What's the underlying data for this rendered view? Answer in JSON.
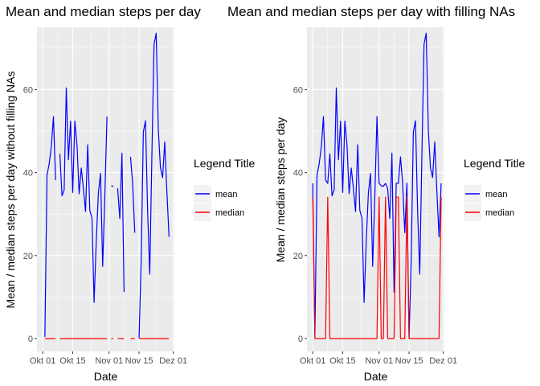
{
  "chart_data": [
    {
      "type": "line",
      "title": "Mean and median steps per day",
      "xlabel": "Date",
      "ylabel": "Mean / median steps per day without filling NAs",
      "x": [
        "2012-10-01",
        "2012-10-02",
        "2012-10-03",
        "2012-10-04",
        "2012-10-05",
        "2012-10-06",
        "2012-10-07",
        "2012-10-08",
        "2012-10-09",
        "2012-10-10",
        "2012-10-11",
        "2012-10-12",
        "2012-10-13",
        "2012-10-14",
        "2012-10-15",
        "2012-10-16",
        "2012-10-17",
        "2012-10-18",
        "2012-10-19",
        "2012-10-20",
        "2012-10-21",
        "2012-10-22",
        "2012-10-23",
        "2012-10-24",
        "2012-10-25",
        "2012-10-26",
        "2012-10-27",
        "2012-10-28",
        "2012-10-29",
        "2012-10-30",
        "2012-10-31",
        "2012-11-01",
        "2012-11-02",
        "2012-11-03",
        "2012-11-04",
        "2012-11-05",
        "2012-11-06",
        "2012-11-07",
        "2012-11-08",
        "2012-11-09",
        "2012-11-10",
        "2012-11-11",
        "2012-11-12",
        "2012-11-13",
        "2012-11-14",
        "2012-11-15",
        "2012-11-16",
        "2012-11-17",
        "2012-11-18",
        "2012-11-19",
        "2012-11-20",
        "2012-11-21",
        "2012-11-22",
        "2012-11-23",
        "2012-11-24",
        "2012-11-25",
        "2012-11-26",
        "2012-11-27",
        "2012-11-28",
        "2012-11-29",
        "2012-11-30"
      ],
      "series": [
        {
          "name": "mean",
          "color": "#0000ff",
          "values": [
            null,
            0.4,
            39.4,
            42.1,
            46.2,
            53.5,
            38.2,
            null,
            44.5,
            34.4,
            35.8,
            60.4,
            43.1,
            52.4,
            35.2,
            52.4,
            46.7,
            34.9,
            41.1,
            36.1,
            30.6,
            46.7,
            30.9,
            29.0,
            8.7,
            23.5,
            35.1,
            39.8,
            17.4,
            34.1,
            53.5,
            null,
            36.8,
            36.7,
            null,
            36.2,
            28.9,
            44.7,
            11.2,
            null,
            null,
            43.8,
            37.4,
            25.5,
            null,
            0.1,
            18.9,
            49.8,
            52.5,
            30.7,
            15.5,
            44.4,
            70.9,
            73.6,
            50.3,
            41.1,
            38.8,
            47.4,
            35.4,
            24.5,
            null
          ]
        },
        {
          "name": "median",
          "color": "#ff0000",
          "values": [
            null,
            0,
            0,
            0,
            0,
            0,
            0,
            null,
            0,
            0,
            0,
            0,
            0,
            0,
            0,
            0,
            0,
            0,
            0,
            0,
            0,
            0,
            0,
            0,
            0,
            0,
            0,
            0,
            0,
            0,
            0,
            null,
            0,
            0,
            null,
            0,
            0,
            0,
            0,
            null,
            null,
            0,
            0,
            0,
            null,
            0,
            0,
            0,
            0,
            0,
            0,
            0,
            0,
            0,
            0,
            0,
            0,
            0,
            0,
            0,
            null
          ]
        }
      ],
      "ylim": [
        0,
        75
      ],
      "yticks": [
        0,
        20,
        40,
        60
      ],
      "xticks": [
        {
          "value": "2012-10-01",
          "label": "Okt 01"
        },
        {
          "value": "2012-10-15",
          "label": "Okt 15"
        },
        {
          "value": "2012-11-01",
          "label": "Nov 01"
        },
        {
          "value": "2012-11-15",
          "label": "Nov 15"
        },
        {
          "value": "2012-12-01",
          "label": "Dez 01"
        }
      ],
      "grid": true,
      "legend": {
        "title": "Legend Title",
        "placement": "right"
      }
    },
    {
      "type": "line",
      "title": "Mean and median steps per day with filling NAs",
      "xlabel": "Date",
      "ylabel": "Mean / median steps per day",
      "x": [
        "2012-10-01",
        "2012-10-02",
        "2012-10-03",
        "2012-10-04",
        "2012-10-05",
        "2012-10-06",
        "2012-10-07",
        "2012-10-08",
        "2012-10-09",
        "2012-10-10",
        "2012-10-11",
        "2012-10-12",
        "2012-10-13",
        "2012-10-14",
        "2012-10-15",
        "2012-10-16",
        "2012-10-17",
        "2012-10-18",
        "2012-10-19",
        "2012-10-20",
        "2012-10-21",
        "2012-10-22",
        "2012-10-23",
        "2012-10-24",
        "2012-10-25",
        "2012-10-26",
        "2012-10-27",
        "2012-10-28",
        "2012-10-29",
        "2012-10-30",
        "2012-10-31",
        "2012-11-01",
        "2012-11-02",
        "2012-11-03",
        "2012-11-04",
        "2012-11-05",
        "2012-11-06",
        "2012-11-07",
        "2012-11-08",
        "2012-11-09",
        "2012-11-10",
        "2012-11-11",
        "2012-11-12",
        "2012-11-13",
        "2012-11-14",
        "2012-11-15",
        "2012-11-16",
        "2012-11-17",
        "2012-11-18",
        "2012-11-19",
        "2012-11-20",
        "2012-11-21",
        "2012-11-22",
        "2012-11-23",
        "2012-11-24",
        "2012-11-25",
        "2012-11-26",
        "2012-11-27",
        "2012-11-28",
        "2012-11-29",
        "2012-11-30"
      ],
      "series": [
        {
          "name": "mean",
          "color": "#0000ff",
          "values": [
            37.4,
            0.4,
            39.4,
            42.1,
            46.2,
            53.5,
            38.2,
            37.4,
            44.5,
            34.4,
            35.8,
            60.4,
            43.1,
            52.4,
            35.2,
            52.4,
            46.7,
            34.9,
            41.1,
            36.1,
            30.6,
            46.7,
            30.9,
            29.0,
            8.7,
            23.5,
            35.1,
            39.8,
            17.4,
            34.1,
            53.5,
            37.4,
            36.8,
            36.7,
            37.4,
            36.2,
            28.9,
            44.7,
            11.2,
            37.4,
            37.4,
            43.8,
            37.4,
            25.5,
            37.4,
            0.1,
            18.9,
            49.8,
            52.5,
            30.7,
            15.5,
            44.4,
            70.9,
            73.6,
            50.3,
            41.1,
            38.8,
            47.4,
            35.4,
            24.5,
            37.4
          ]
        },
        {
          "name": "median",
          "color": "#ff0000",
          "values": [
            34.1,
            0,
            0,
            0,
            0,
            0,
            0,
            34.1,
            0,
            0,
            0,
            0,
            0,
            0,
            0,
            0,
            0,
            0,
            0,
            0,
            0,
            0,
            0,
            0,
            0,
            0,
            0,
            0,
            0,
            0,
            0,
            34.1,
            0,
            0,
            34.1,
            0,
            0,
            0,
            0,
            34.1,
            34.1,
            0,
            0,
            0,
            34.1,
            0,
            0,
            0,
            0,
            0,
            0,
            0,
            0,
            0,
            0,
            0,
            0,
            0,
            0,
            0,
            34.1
          ]
        }
      ],
      "ylim": [
        0,
        75
      ],
      "yticks": [
        0,
        20,
        40,
        60
      ],
      "xticks": [
        {
          "value": "2012-10-01",
          "label": "Okt 01"
        },
        {
          "value": "2012-10-15",
          "label": "Okt 15"
        },
        {
          "value": "2012-11-01",
          "label": "Nov 01"
        },
        {
          "value": "2012-11-15",
          "label": "Nov 15"
        },
        {
          "value": "2012-12-01",
          "label": "Dez 01"
        }
      ],
      "grid": true,
      "legend": {
        "title": "Legend Title",
        "placement": "right"
      }
    }
  ]
}
